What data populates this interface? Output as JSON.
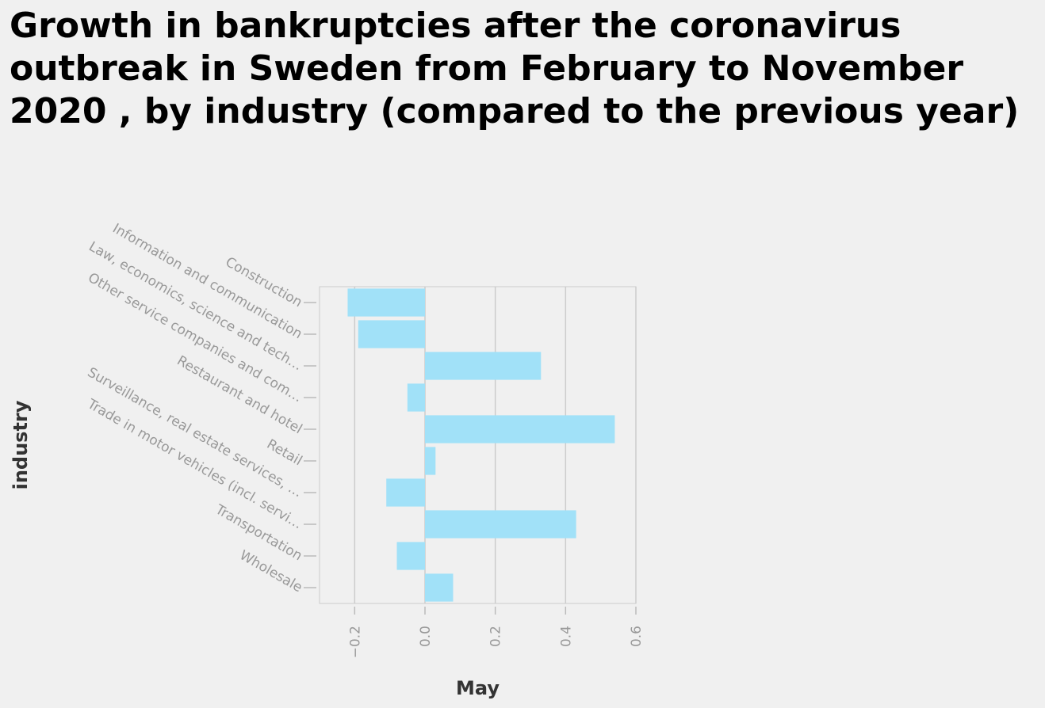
{
  "chart_data": {
    "type": "bar",
    "orientation": "horizontal",
    "title": "Growth in bankruptcies after the coronavirus outbreak in Sweden from February to November 2020 , by industry (compared to the previous year)",
    "xlabel": "May",
    "ylabel": "industry",
    "categories": [
      "Construction",
      "Information and communication",
      "Law, economics, science and tech…",
      "Other service companies and com…",
      "Restaurant and hotel",
      "Retail",
      "Surveillance, real estate services, …",
      "Trade in motor vehicles (incl. servi…",
      "Transportation",
      "Wholesale"
    ],
    "values": [
      -0.22,
      -0.19,
      0.33,
      -0.05,
      0.54,
      0.03,
      -0.11,
      0.43,
      -0.08,
      0.08
    ],
    "xlim": [
      -0.3,
      0.6
    ],
    "xticks": [
      -0.2,
      0.0,
      0.2,
      0.4,
      0.6
    ],
    "xtick_labels": [
      "−0.2",
      "0.0",
      "0.2",
      "0.4",
      "0.6"
    ],
    "grid": true,
    "bar_color": "#a1e1f8",
    "grid_color": "#cccccc",
    "background": "#f0f0f0"
  }
}
